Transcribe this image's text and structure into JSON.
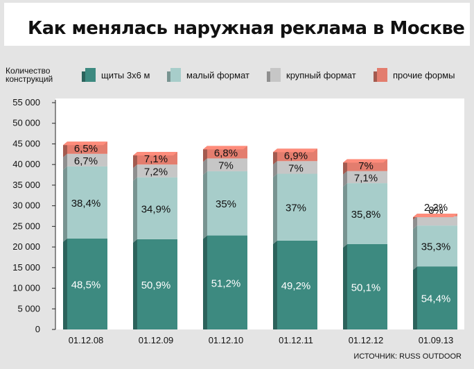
{
  "title": "Как менялась наружная реклама в Москве",
  "source": "ИСТОЧНИК: RUSS OUTDOOR",
  "colors": {
    "billboards": "#3d8a80",
    "small": "#a7cdca",
    "large": "#c6c6c6",
    "other": "#e37d6e"
  },
  "chart_data": {
    "type": "bar",
    "stacked": true,
    "title": "Как менялась наружная реклама в Москве",
    "ylabel": "Количество конструкций",
    "ylabel_lines": [
      "Количество",
      "конструкций"
    ],
    "ylim": [
      0,
      55000
    ],
    "yticks": [
      0,
      5000,
      10000,
      15000,
      20000,
      25000,
      30000,
      35000,
      40000,
      45000,
      50000,
      55000
    ],
    "ytick_labels": [
      "0",
      "5 000",
      "10 000",
      "15 000",
      "20 000",
      "25 000",
      "30 000",
      "35 000",
      "40 000",
      "45 000",
      "50 000",
      "55 000"
    ],
    "categories": [
      "01.12.08",
      "01.12.09",
      "01.12.10",
      "01.12.11",
      "01.12.12",
      "01.09.13"
    ],
    "totals": [
      45500,
      43000,
      44500,
      43800,
      41300,
      28100
    ],
    "legend": [
      "щиты 3х6 м",
      "малый формат",
      "крупный формат",
      "прочие формы"
    ],
    "series": [
      {
        "name": "щиты 3х6 м",
        "key": "billboards",
        "percent_labels": [
          "48,5%",
          "50,9%",
          "51,2%",
          "49,2%",
          "50,1%",
          "54,4%"
        ],
        "percent": [
          48.5,
          50.9,
          51.2,
          49.2,
          50.1,
          54.4
        ]
      },
      {
        "name": "малый формат",
        "key": "small",
        "percent_labels": [
          "38,4%",
          "34,9%",
          "35%",
          "37%",
          "35,8%",
          "35,3%"
        ],
        "percent": [
          38.4,
          34.9,
          35,
          37,
          35.8,
          35.3
        ]
      },
      {
        "name": "крупный формат",
        "key": "large",
        "percent_labels": [
          "6,7%",
          "7,2%",
          "7%",
          "7%",
          "7,1%",
          "8%"
        ],
        "percent": [
          6.7,
          7.2,
          7,
          7,
          7.1,
          8
        ]
      },
      {
        "name": "прочие формы",
        "key": "other",
        "percent_labels": [
          "6,5%",
          "7,1%",
          "6,8%",
          "6,9%",
          "7%",
          "2,2%"
        ],
        "percent": [
          6.5,
          7.1,
          6.8,
          6.9,
          7,
          2.2
        ]
      }
    ]
  }
}
